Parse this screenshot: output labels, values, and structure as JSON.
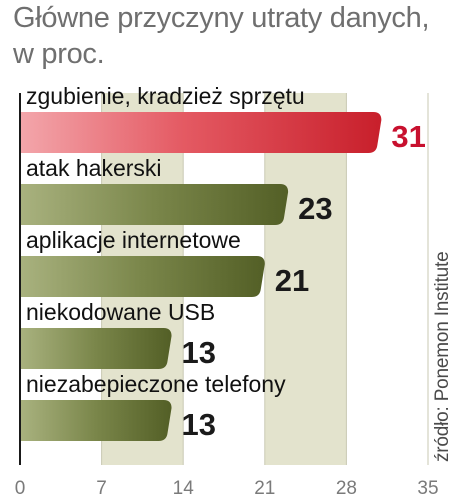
{
  "title_lines": [
    "Główne przyczyny utraty danych,",
    "w proc."
  ],
  "source": "źródło: Ponemon Institute",
  "colors": {
    "highlight_bar": "#d8323c",
    "bar": "#5e6b32",
    "grid_band": "#e3e3cd",
    "value_highlight": "#c8102e",
    "value": "#1a1a1a",
    "axis_tick": "#7a7a7a"
  },
  "chart_data": {
    "type": "bar",
    "orientation": "horizontal",
    "title": "Główne przyczyny utraty danych, w proc.",
    "categories": [
      "zgubienie, kradzież sprzętu",
      "atak hakerski",
      "aplikacje internetowe",
      "niekodowane USB",
      "niezabepieczone telefony"
    ],
    "values": [
      31,
      23,
      21,
      13,
      13
    ],
    "xlim": [
      0,
      35
    ],
    "xticks": [
      0,
      7,
      14,
      21,
      28,
      35
    ],
    "highlight_index": 0,
    "legend": "none",
    "grid": "alternating vertical bands"
  }
}
